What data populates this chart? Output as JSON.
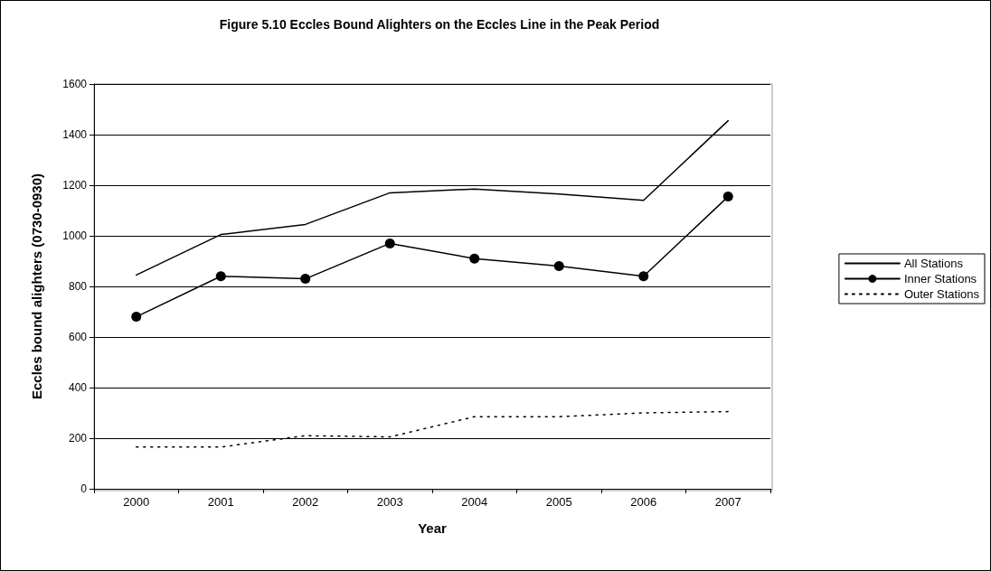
{
  "chart_data": {
    "type": "line",
    "title": "Figure 5.10 Eccles Bound Alighters on the Eccles Line in the Peak Period",
    "xlabel": "Year",
    "ylabel": "Eccles bound alighters (0730-0930)",
    "categories": [
      "2000",
      "2001",
      "2002",
      "2003",
      "2004",
      "2005",
      "2006",
      "2007"
    ],
    "series": [
      {
        "name": "All Stations",
        "color": "#000000",
        "marker": "none",
        "line_style": "solid",
        "values": [
          845,
          1005,
          1045,
          1170,
          1185,
          1165,
          1140,
          1455
        ]
      },
      {
        "name": "Inner Stations",
        "color": "#000000",
        "marker": "circle",
        "line_style": "solid",
        "values": [
          680,
          840,
          830,
          970,
          910,
          880,
          840,
          1155
        ]
      },
      {
        "name": "Outer Stations",
        "color": "#000000",
        "marker": "none",
        "line_style": "dotted",
        "values": [
          165,
          165,
          210,
          205,
          285,
          285,
          300,
          305
        ]
      }
    ],
    "ylim": [
      0,
      1600
    ],
    "yticks": [
      0,
      200,
      400,
      600,
      800,
      1000,
      1200,
      1400,
      1600
    ],
    "grid": "y",
    "legend": "right"
  }
}
